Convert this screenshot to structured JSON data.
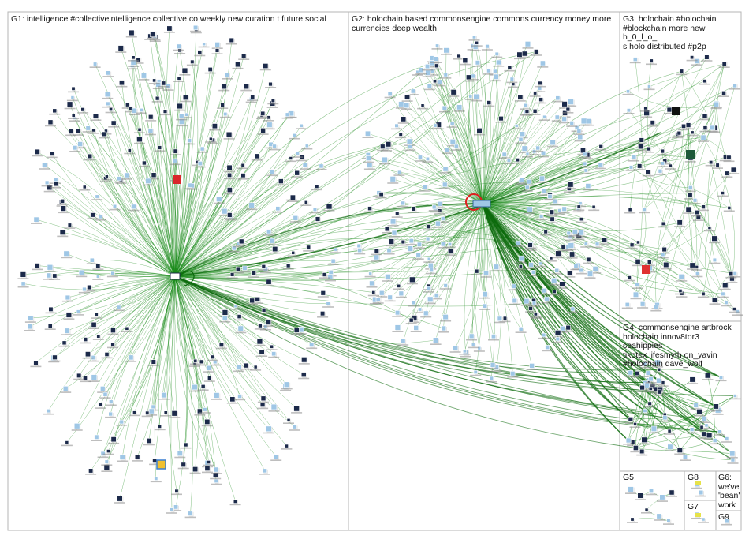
{
  "groups": [
    {
      "id": "G1",
      "label": "G1: intelligence #collectiveintelligence collective co weekly new curation t future social"
    },
    {
      "id": "G2",
      "label": "G2: holochain based commonsengine commons currency money more\ncurrencies deep wealth"
    },
    {
      "id": "G3",
      "label": "G3: holochain #holochain\n#blockchain more new h_0_l_o_\ns holo distributed #p2p"
    },
    {
      "id": "G4",
      "label": "G4: commonsengine artbrock\nholochain innov8tor3 seahippies\ntikotex lifesmyth on_yavin\n#holochain dave_wolf"
    },
    {
      "id": "G5",
      "label": "G5"
    },
    {
      "id": "G6",
      "label": "G6:\nwe've\n'bean'\nwork"
    },
    {
      "id": "G7",
      "label": "G7"
    },
    {
      "id": "G8",
      "label": "G8"
    },
    {
      "id": "G9",
      "label": "G9"
    }
  ],
  "colors": {
    "edge": "#1a8a1a",
    "edge_dark": "#0d6b0d",
    "self_loop": "#e02020",
    "box_border": "#b5b5b5",
    "node_light": "#9fc7e6",
    "node_dark": "#1c2a4a"
  }
}
